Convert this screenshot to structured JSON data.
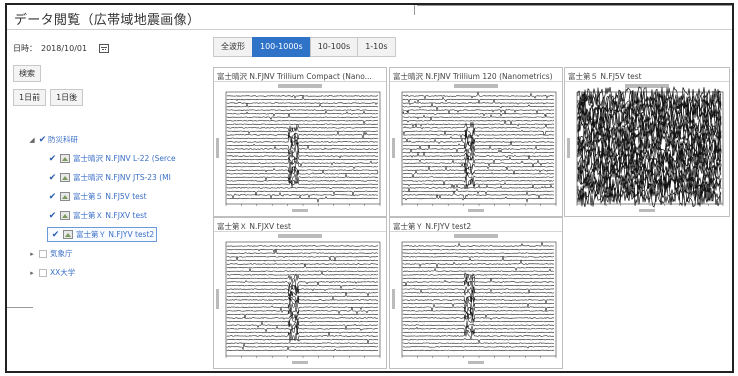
{
  "window": {
    "title": "データ閲覧（広帯域地震画像）"
  },
  "controls": {
    "date_label": "日時：",
    "date_value": "2018/10/01",
    "search_label": "検索",
    "prev_label": "1日前",
    "next_label": "1日後"
  },
  "tree": {
    "root": {
      "label": "防災科研"
    },
    "stations": [
      {
        "label": "富士晴沢 N.FJNV L-22 (Serce"
      },
      {
        "label": "富士晴沢 N.FJNV JTS-23 (MI"
      },
      {
        "label": "富士第５ N.FJ5V test"
      },
      {
        "label": "富士第Ｘ N.FJXV test"
      },
      {
        "label": "富士第Ｙ N.FJYV test2"
      }
    ],
    "others": [
      {
        "label": "気象庁"
      },
      {
        "label": "XX大学"
      }
    ]
  },
  "tabs": [
    {
      "label": "全波形"
    },
    {
      "label": "100-1000s"
    },
    {
      "label": "10-100s"
    },
    {
      "label": "1-10s"
    }
  ],
  "active_tab_index": 1,
  "panels": [
    {
      "title": "富士晴沢 N.FJNV Trillium Compact (Nano...",
      "style": "normal"
    },
    {
      "title": "富士晴沢 N.FJNV Trillium 120 (Nanometrics)",
      "style": "busy"
    },
    {
      "title": "富士第５ N.FJ5V test",
      "style": "dense"
    },
    {
      "title": "富士第Ｘ N.FJXV test",
      "style": "normal"
    },
    {
      "title": "富士第Ｙ N.FJYV test2",
      "style": "normal"
    }
  ],
  "colors": {
    "accent": "#2f73c9",
    "tree_text": "#3a6fc7"
  }
}
